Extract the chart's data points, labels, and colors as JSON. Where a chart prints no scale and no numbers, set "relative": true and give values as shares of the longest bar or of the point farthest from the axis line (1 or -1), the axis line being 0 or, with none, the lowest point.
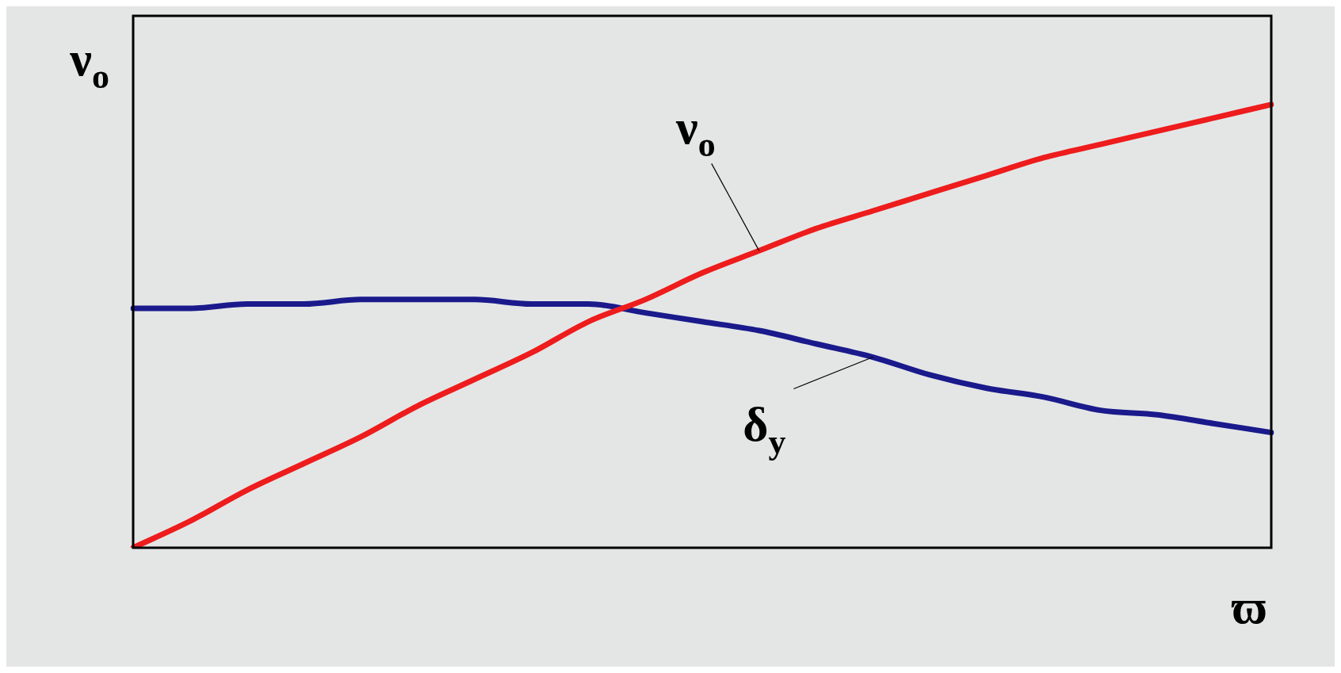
{
  "chart_data": {
    "type": "line",
    "relative": true,
    "ylabel": "ν$_{o}$",
    "xlabel": "ϖ",
    "legend": false,
    "marker": "none",
    "line_style": "solid",
    "categories": [
      null,
      null,
      null,
      null,
      null,
      null,
      null,
      null,
      null,
      null,
      null,
      null,
      null,
      null,
      null,
      null,
      null,
      null,
      null,
      null,
      null
    ],
    "series": [
      {
        "name": "ν$_{o}$",
        "color": "#ee1c1c",
        "values": [
          0,
          0.06,
          0.13,
          0.19,
          0.25,
          0.32,
          0.38,
          0.44,
          0.51,
          0.56,
          0.62,
          0.67,
          0.72,
          0.76,
          0.8,
          0.84,
          0.88,
          0.91,
          0.94,
          0.97,
          1
        ]
      },
      {
        "name": "δ$_{y}$",
        "color": "#1a1a8c",
        "values": [
          0.54,
          0.54,
          0.55,
          0.55,
          0.56,
          0.56,
          0.56,
          0.55,
          0.55,
          0.53,
          0.51,
          0.49,
          0.46,
          0.43,
          0.39,
          0.36,
          0.34,
          0.31,
          0.3,
          0.28,
          0.26
        ]
      }
    ]
  }
}
